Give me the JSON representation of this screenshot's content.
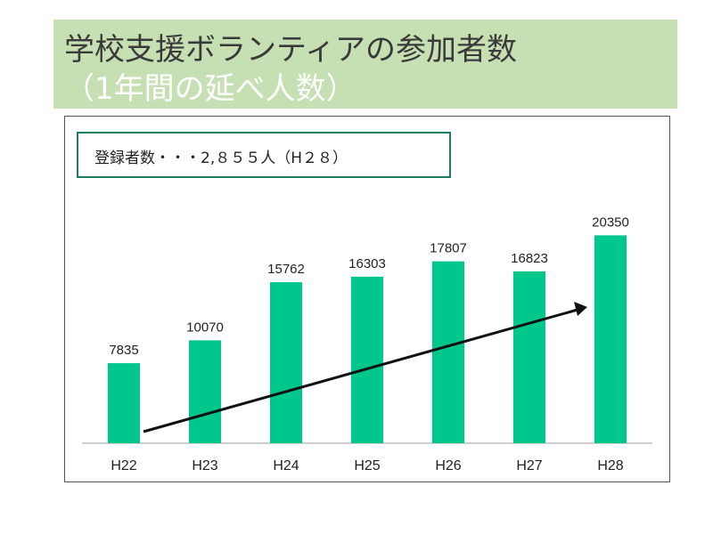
{
  "header": {
    "title_line1": "学校支援ボランティアの参加者数",
    "title_line2": "（1年間の延べ人数）"
  },
  "note": {
    "text": "登録者数・・・2,８５５人（H２８）"
  },
  "colors": {
    "banner": "#c6e0b4",
    "bar": "#00c78c",
    "note_border": "#1a7f5a",
    "arrow": "#111111"
  },
  "chart_data": {
    "type": "bar",
    "categories": [
      "H22",
      "H23",
      "H24",
      "H25",
      "H26",
      "H27",
      "H28"
    ],
    "values": [
      7835,
      10070,
      15762,
      16303,
      17807,
      16823,
      20350
    ],
    "ylim": [
      0,
      23000
    ],
    "grid": false,
    "legend": "none",
    "annotation": "upward trend arrow"
  }
}
